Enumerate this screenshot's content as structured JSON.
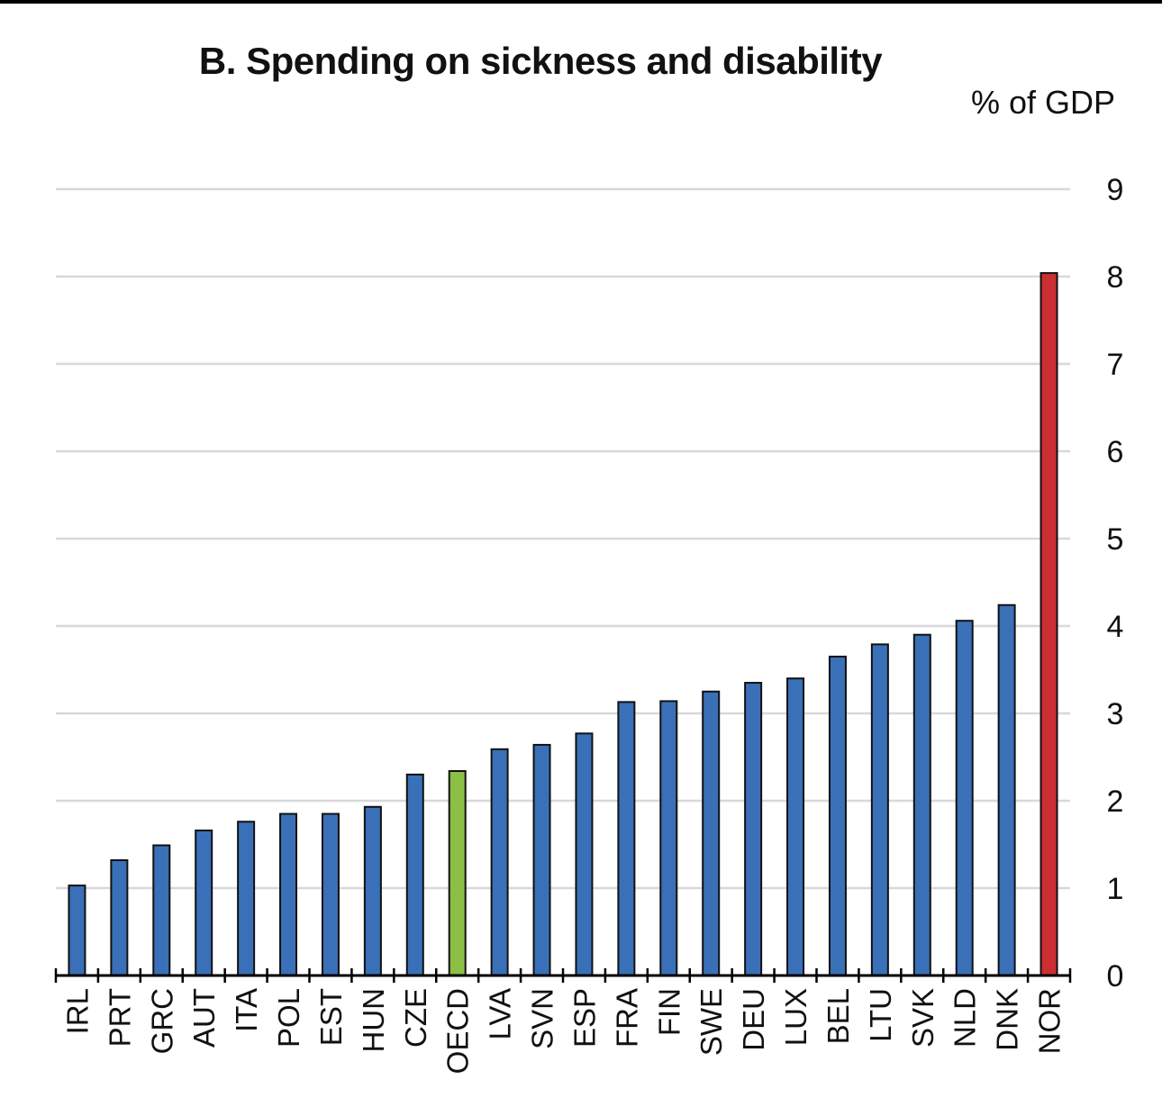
{
  "chart_data": {
    "type": "bar",
    "title": "B. Spending on sickness and disability",
    "unit_label": "% of GDP",
    "xlabel": "",
    "ylabel": "",
    "ylim": [
      0,
      9
    ],
    "yticks": [
      0,
      1,
      2,
      3,
      4,
      5,
      6,
      7,
      8,
      9
    ],
    "grid": true,
    "y_axis_side": "right",
    "categories": [
      "IRL",
      "PRT",
      "GRC",
      "AUT",
      "ITA",
      "POL",
      "EST",
      "HUN",
      "CZE",
      "OECD",
      "LVA",
      "SVN",
      "ESP",
      "FRA",
      "FIN",
      "SWE",
      "DEU",
      "LUX",
      "BEL",
      "LTU",
      "SVK",
      "NLD",
      "DNK",
      "NOR"
    ],
    "values": [
      1.03,
      1.32,
      1.49,
      1.66,
      1.76,
      1.85,
      1.85,
      1.93,
      2.3,
      2.34,
      2.59,
      2.64,
      2.77,
      3.13,
      3.14,
      3.25,
      3.35,
      3.4,
      3.65,
      3.79,
      3.9,
      4.06,
      4.24,
      8.04
    ],
    "colors": {
      "default": "#3a70b8",
      "OECD": "#8bbf45",
      "NOR": "#cc2f33",
      "grid": "#d8d8dc",
      "axis": "#000000",
      "bar_outline": "#111111"
    }
  }
}
